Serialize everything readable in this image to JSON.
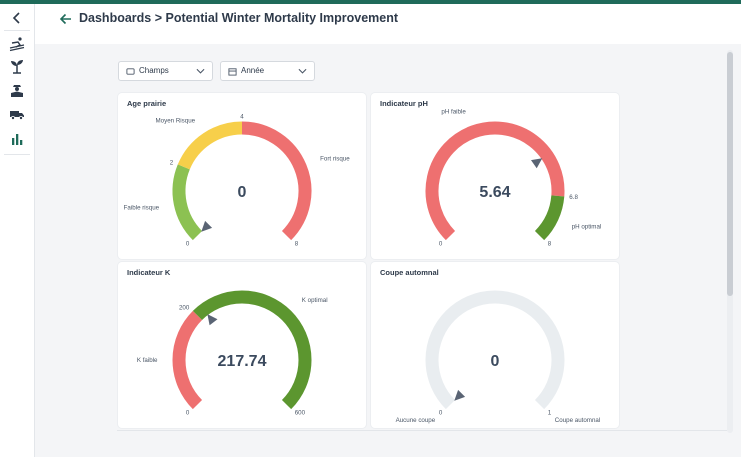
{
  "header": {
    "title": "Dashboards > Potential Winter Mortality Improvement"
  },
  "sidebar": {
    "items": [
      {
        "icon": "chevron-left-icon"
      },
      {
        "icon": "ski-icon"
      },
      {
        "icon": "plant-icon"
      },
      {
        "icon": "farmer-icon"
      },
      {
        "icon": "truck-icon"
      },
      {
        "icon": "bar-chart-icon"
      }
    ],
    "active": "bar-chart-icon"
  },
  "filters": {
    "champs": {
      "label": "Champs",
      "icon": "field-icon"
    },
    "annee": {
      "label": "Année",
      "icon": "calendar-icon"
    }
  },
  "colors": {
    "accent": "#1f6b5a",
    "red": "#ee7070",
    "yellow": "#f7cf4a",
    "light_green": "#8cc152",
    "dark_green": "#5c962f",
    "empty": "#e9edf0",
    "needle": "#5a6474"
  },
  "gauges": [
    {
      "title": "Age prairie",
      "value": "0",
      "min": 0,
      "max": 8,
      "current": 0,
      "bands": [
        {
          "from": 0,
          "to": 2,
          "color": "#8cc152"
        },
        {
          "from": 2,
          "to": 4,
          "color": "#f7cf4a"
        },
        {
          "from": 4,
          "to": 8,
          "color": "#ee7070"
        }
      ],
      "ticks": [
        {
          "at": 0,
          "text": "0"
        },
        {
          "at": 2,
          "text": "2"
        },
        {
          "at": 4,
          "text": "4"
        },
        {
          "at": 8,
          "text": "8"
        }
      ],
      "band_labels": [
        {
          "at": 1,
          "text": "Faible risque"
        },
        {
          "at": 3,
          "text": "Moyen Risque"
        },
        {
          "at": 6,
          "text": "Fort risque"
        }
      ]
    },
    {
      "title": "Indicateur pH",
      "value": "5.64",
      "min": 0,
      "max": 8,
      "current": 5.64,
      "bands": [
        {
          "from": 0,
          "to": 6.8,
          "color": "#ee7070"
        },
        {
          "from": 6.8,
          "to": 8,
          "color": "#5c962f"
        }
      ],
      "ticks": [
        {
          "at": 0,
          "text": "0"
        },
        {
          "at": 6.8,
          "text": "6.8"
        },
        {
          "at": 8,
          "text": "8"
        }
      ],
      "band_labels": [
        {
          "at": 3.4,
          "text": "pH faible"
        },
        {
          "at": 7.4,
          "text": "pH optimal"
        }
      ]
    },
    {
      "title": "Indicateur K",
      "value": "217.74",
      "min": 0,
      "max": 600,
      "current": 217.74,
      "bands": [
        {
          "from": 0,
          "to": 200,
          "color": "#ee7070"
        },
        {
          "from": 200,
          "to": 600,
          "color": "#5c962f"
        }
      ],
      "ticks": [
        {
          "at": 0,
          "text": "0"
        },
        {
          "at": 200,
          "text": "200"
        },
        {
          "at": 600,
          "text": "600"
        }
      ],
      "band_labels": [
        {
          "at": 100,
          "text": "K faible"
        },
        {
          "at": 400,
          "text": "K optimal"
        }
      ]
    },
    {
      "title": "Coupe automnal",
      "value": "0",
      "min": 0,
      "max": 1,
      "current": 0,
      "bands": [
        {
          "from": 0,
          "to": 1,
          "color": "#e9edf0"
        }
      ],
      "ticks": [
        {
          "at": 0,
          "text": "0"
        },
        {
          "at": 1,
          "text": "1"
        }
      ],
      "band_labels": [
        {
          "at": 0,
          "text": "Aucune coupe"
        },
        {
          "at": 1,
          "text": "Coupe automnal"
        }
      ]
    }
  ]
}
